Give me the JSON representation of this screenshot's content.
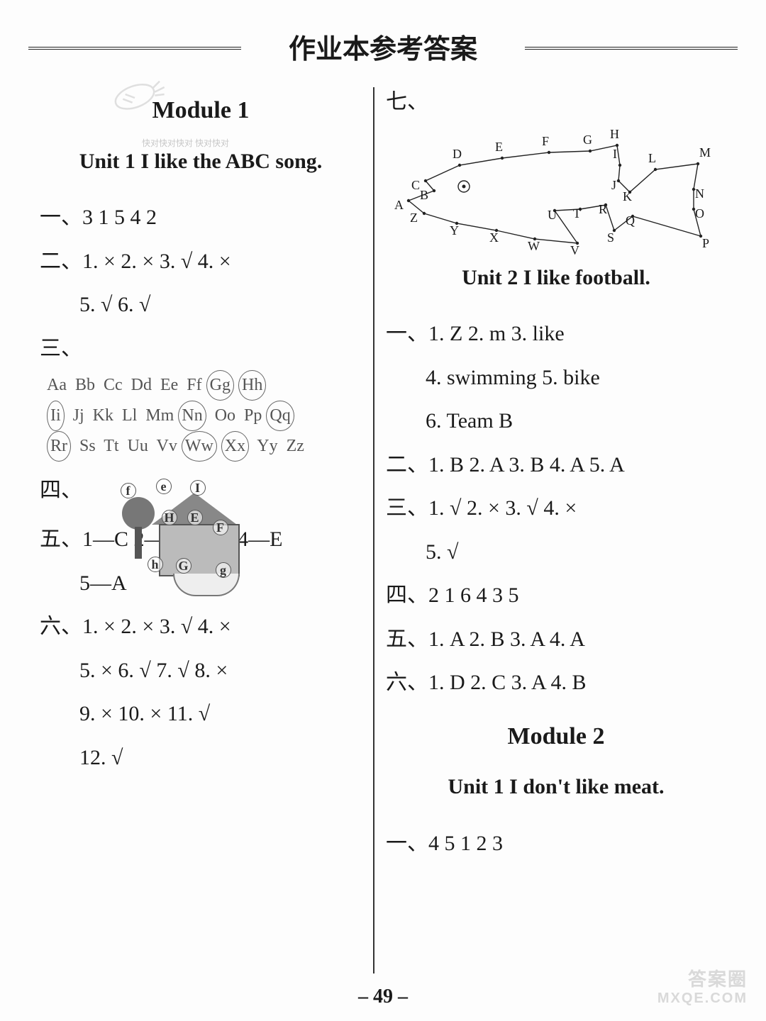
{
  "colors": {
    "text": "#1a1a1a",
    "bg": "#fdfdfd",
    "rule": "#222222",
    "faded": "#555555",
    "wm": "#d9d9d9"
  },
  "page_title": "作业本参考答案",
  "page_number": "– 49 –",
  "watermark": {
    "line1": "答案圈",
    "line2": "MXQE.COM"
  },
  "tiny_wm": "快对快对快对\n快对快对",
  "left": {
    "module": "Module 1",
    "unit": "Unit 1   I like the ABC song.",
    "q1": "一、3   1   5   4   2",
    "q2a": "二、1. ×   2. ×   3. √   4. ×",
    "q2b": "5. √   6. √",
    "q3_label": "三、",
    "alphabet": {
      "row1": "Aa  Bb  Cc  Dd  Ee  Ff  Gg  Hh",
      "row2": "Ii  Jj  Kk  Ll  Mm  Nn  Oo  Pp  Qq",
      "row3": "Rr  Ss  Tt  Uu  Vv  Ww  Xx  Yy  Zz",
      "circled": [
        "Gg",
        "Hh",
        "Ii",
        "Nn",
        "Qq",
        "Rr",
        "Ww",
        "Xx"
      ]
    },
    "q4_label": "四、",
    "house_labels": [
      "f",
      "e",
      "I",
      "H",
      "E",
      "F",
      "h",
      "G",
      "g"
    ],
    "q5a": "五、1—C   2—D   3—B   4—E",
    "q5b": "5—A",
    "q6a": "六、1. ×   2. ×   3. √   4. ×",
    "q6b": "5. ×   6. √   7. √   8. ×",
    "q6c": "9. ×   10. ×   11. √",
    "q6d": "12. √"
  },
  "right": {
    "q7_label": "七、",
    "fish": {
      "letters": [
        "A",
        "B",
        "C",
        "D",
        "E",
        "F",
        "G",
        "H",
        "I",
        "J",
        "K",
        "L",
        "M",
        "N",
        "O",
        "P",
        "Q",
        "R",
        "S",
        "T",
        "U",
        "V",
        "W",
        "X",
        "Y",
        "Z"
      ],
      "points": {
        "A": [
          12,
          108
        ],
        "Z": [
          34,
          126
        ],
        "B": [
          48,
          94
        ],
        "C": [
          36,
          80
        ],
        "D": [
          84,
          58
        ],
        "E": [
          144,
          48
        ],
        "F": [
          210,
          40
        ],
        "G": [
          268,
          38
        ],
        "H": [
          306,
          30
        ],
        "I": [
          310,
          58
        ],
        "J": [
          308,
          80
        ],
        "K": [
          324,
          96
        ],
        "L": [
          360,
          64
        ],
        "M": [
          420,
          56
        ],
        "N": [
          414,
          92
        ],
        "O": [
          414,
          120
        ],
        "P": [
          424,
          158
        ],
        "Q": [
          328,
          130
        ],
        "S": [
          302,
          150
        ],
        "R": [
          290,
          114
        ],
        "T": [
          254,
          120
        ],
        "U": [
          218,
          122
        ],
        "V": [
          250,
          168
        ],
        "W": [
          190,
          162
        ],
        "X": [
          136,
          150
        ],
        "Y": [
          80,
          140
        ]
      },
      "path_order": [
        "A",
        "B",
        "C",
        "D",
        "E",
        "F",
        "G",
        "H",
        "I",
        "J",
        "K",
        "L",
        "M",
        "N",
        "O",
        "P",
        "Q",
        "S",
        "R",
        "T",
        "U",
        "V",
        "W",
        "X",
        "Y",
        "Z",
        "A"
      ],
      "eye": [
        90,
        88
      ]
    },
    "unit2": "Unit 2    I like football.",
    "u2_q1a": "一、1. Z   2. m   3. like",
    "u2_q1b": "4. swimming   5. bike",
    "u2_q1c": "6. Team B",
    "u2_q2": "二、1. B   2. A   3. B   4. A   5. A",
    "u2_q3a": "三、1. √   2. ×   3. √   4. ×",
    "u2_q3b": "5. √",
    "u2_q4": "四、2   1   6   4   3   5",
    "u2_q5": "五、1. A   2. B   3. A   4. A",
    "u2_q6": "六、1. D   2. C   3. A   4. B",
    "module2": "Module 2",
    "m2_unit1": "Unit 1   I don't like meat.",
    "m2_q1": "一、4   5   1   2   3"
  }
}
